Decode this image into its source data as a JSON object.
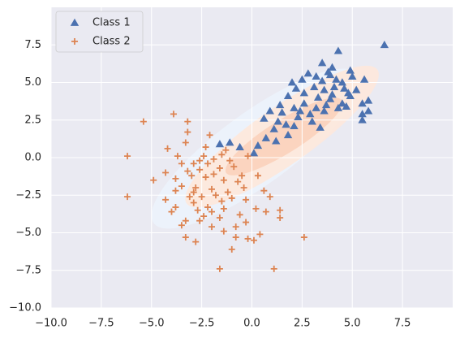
{
  "chart_data": {
    "type": "scatter",
    "title": "",
    "xlabel": "",
    "ylabel": "",
    "xlim": [
      -10,
      10
    ],
    "ylim": [
      -10,
      10
    ],
    "x_ticks": [
      -10.0,
      -7.5,
      -5.0,
      -2.5,
      0.0,
      2.5,
      5.0,
      7.5
    ],
    "x_tick_labels": [
      "−10.0",
      "−7.5",
      "−5.0",
      "−2.5",
      "0.0",
      "2.5",
      "5.0",
      "7.5"
    ],
    "y_ticks": [
      -10.0,
      -7.5,
      -5.0,
      -2.5,
      0.0,
      2.5,
      5.0,
      7.5
    ],
    "y_tick_labels": [
      "−10.0",
      "−7.5",
      "−5.0",
      "−2.5",
      "0.0",
      "2.5",
      "5.0",
      "7.5"
    ],
    "grid": true,
    "legend_position": "top-left",
    "background_color": "#eaeaf2",
    "series": [
      {
        "name": "Class 1",
        "marker": "triangle",
        "color": "#4c72b0",
        "points": [
          [
            6.6,
            7.5
          ],
          [
            4.3,
            7.1
          ],
          [
            3.5,
            6.3
          ],
          [
            4.0,
            6.0
          ],
          [
            2.8,
            5.6
          ],
          [
            3.8,
            5.7
          ],
          [
            4.9,
            5.8
          ],
          [
            2.0,
            5.0
          ],
          [
            2.5,
            5.2
          ],
          [
            3.2,
            5.4
          ],
          [
            3.5,
            5.1
          ],
          [
            3.9,
            5.5
          ],
          [
            4.2,
            5.2
          ],
          [
            4.5,
            5.0
          ],
          [
            5.0,
            5.4
          ],
          [
            5.6,
            5.2
          ],
          [
            2.2,
            4.6
          ],
          [
            3.1,
            4.7
          ],
          [
            3.6,
            4.5
          ],
          [
            4.1,
            4.7
          ],
          [
            4.6,
            4.6
          ],
          [
            1.8,
            4.1
          ],
          [
            2.6,
            4.3
          ],
          [
            3.3,
            4.0
          ],
          [
            4.0,
            4.2
          ],
          [
            4.8,
            4.3
          ],
          [
            5.2,
            4.5
          ],
          [
            1.4,
            3.5
          ],
          [
            2.1,
            3.3
          ],
          [
            2.6,
            3.6
          ],
          [
            3.2,
            3.3
          ],
          [
            3.7,
            3.5
          ],
          [
            4.3,
            3.3
          ],
          [
            5.5,
            3.6
          ],
          [
            5.8,
            3.1
          ],
          [
            0.9,
            3.1
          ],
          [
            1.5,
            3.0
          ],
          [
            2.4,
            3.1
          ],
          [
            2.9,
            2.9
          ],
          [
            4.5,
            3.6
          ],
          [
            5.5,
            2.9
          ],
          [
            5.5,
            2.5
          ],
          [
            0.6,
            2.6
          ],
          [
            1.3,
            2.4
          ],
          [
            2.1,
            2.1
          ],
          [
            3.0,
            2.4
          ],
          [
            3.4,
            2.0
          ],
          [
            1.1,
            1.9
          ],
          [
            1.7,
            2.2
          ],
          [
            1.8,
            1.5
          ],
          [
            0.7,
            1.3
          ],
          [
            1.2,
            1.1
          ],
          [
            0.3,
            0.8
          ],
          [
            -0.6,
            0.7
          ],
          [
            -1.1,
            1.0
          ],
          [
            -1.6,
            0.9
          ],
          [
            0.1,
            0.3
          ],
          [
            4.9,
            4.1
          ],
          [
            3.9,
            3.9
          ],
          [
            4.7,
            3.4
          ],
          [
            5.8,
            3.8
          ],
          [
            3.6,
            3.1
          ],
          [
            2.3,
            2.7
          ]
        ]
      },
      {
        "name": "Class 2",
        "marker": "plus",
        "color": "#dd8452",
        "points": [
          [
            -3.9,
            2.9
          ],
          [
            -3.2,
            2.4
          ],
          [
            -5.4,
            2.4
          ],
          [
            -3.2,
            1.7
          ],
          [
            -2.1,
            1.5
          ],
          [
            -3.3,
            1.0
          ],
          [
            -2.3,
            0.7
          ],
          [
            -4.2,
            0.6
          ],
          [
            -1.3,
            0.5
          ],
          [
            -6.2,
            0.1
          ],
          [
            -3.7,
            0.1
          ],
          [
            -2.4,
            0.1
          ],
          [
            -1.5,
            0.2
          ],
          [
            -3.5,
            -0.4
          ],
          [
            -2.9,
            -0.4
          ],
          [
            -2.2,
            -0.4
          ],
          [
            -1.1,
            -0.2
          ],
          [
            -0.2,
            0.1
          ],
          [
            -3.2,
            -0.9
          ],
          [
            -2.6,
            -0.8
          ],
          [
            -1.6,
            -0.7
          ],
          [
            -0.9,
            -0.6
          ],
          [
            -4.3,
            -1.0
          ],
          [
            -4.9,
            -1.5
          ],
          [
            -3.8,
            -1.4
          ],
          [
            -3.0,
            -1.2
          ],
          [
            -2.3,
            -1.3
          ],
          [
            -1.4,
            -1.5
          ],
          [
            -0.7,
            -1.6
          ],
          [
            0.3,
            -1.2
          ],
          [
            -3.5,
            -1.9
          ],
          [
            -2.8,
            -2.0
          ],
          [
            -2.0,
            -2.1
          ],
          [
            -1.2,
            -2.3
          ],
          [
            -0.4,
            -2.0
          ],
          [
            0.6,
            -2.2
          ],
          [
            -6.2,
            -2.6
          ],
          [
            -3.1,
            -2.6
          ],
          [
            -2.5,
            -2.6
          ],
          [
            -1.8,
            -2.5
          ],
          [
            -1.0,
            -2.7
          ],
          [
            -0.3,
            -2.8
          ],
          [
            0.9,
            -2.6
          ],
          [
            -4.3,
            -2.8
          ],
          [
            -3.8,
            -3.3
          ],
          [
            -2.9,
            -3.0
          ],
          [
            -2.2,
            -3.3
          ],
          [
            -1.4,
            -3.4
          ],
          [
            -3.3,
            -4.2
          ],
          [
            -2.4,
            -3.9
          ],
          [
            -1.6,
            -4.0
          ],
          [
            0.2,
            -3.4
          ],
          [
            -4.0,
            -3.6
          ],
          [
            -3.5,
            -4.5
          ],
          [
            -2.0,
            -4.6
          ],
          [
            -1.4,
            -4.9
          ],
          [
            -0.8,
            -4.6
          ],
          [
            -3.3,
            -5.3
          ],
          [
            -2.8,
            -5.6
          ],
          [
            -0.2,
            -5.4
          ],
          [
            -1.0,
            -6.1
          ],
          [
            0.1,
            -5.5
          ],
          [
            -0.8,
            -5.3
          ],
          [
            0.4,
            -5.1
          ],
          [
            1.4,
            -4.0
          ],
          [
            2.6,
            -5.3
          ],
          [
            -1.6,
            -7.4
          ],
          [
            1.1,
            -7.4
          ],
          [
            1.4,
            -3.5
          ],
          [
            0.7,
            -3.6
          ],
          [
            -0.6,
            -3.8
          ],
          [
            -2.6,
            -4.2
          ],
          [
            -1.9,
            -1.1
          ],
          [
            -0.5,
            -1.2
          ],
          [
            -2.7,
            -3.5
          ],
          [
            -1.5,
            -2.9
          ],
          [
            -2.0,
            -3.6
          ],
          [
            -0.3,
            -4.3
          ],
          [
            -2.6,
            -0.2
          ],
          [
            -1.9,
            -0.1
          ],
          [
            -3.8,
            -2.2
          ],
          [
            -2.9,
            -2.3
          ]
        ]
      }
    ],
    "density_regions": [
      {
        "level": "outer",
        "color": "#ecf2fb",
        "center": [
          0.2,
          0.6
        ],
        "semi_axes": [
          6.3,
          2.4
        ],
        "angle_deg": 36
      },
      {
        "level": "outer",
        "color": "#fde8dc",
        "center": [
          1.5,
          1.4
        ],
        "semi_axes": [
          5.8,
          1.9
        ],
        "angle_deg": 35
      },
      {
        "level": "inner",
        "color": "#fbd3bd",
        "center": [
          1.6,
          1.4
        ],
        "semi_axes": [
          3.4,
          1.1
        ],
        "angle_deg": 32
      }
    ]
  }
}
